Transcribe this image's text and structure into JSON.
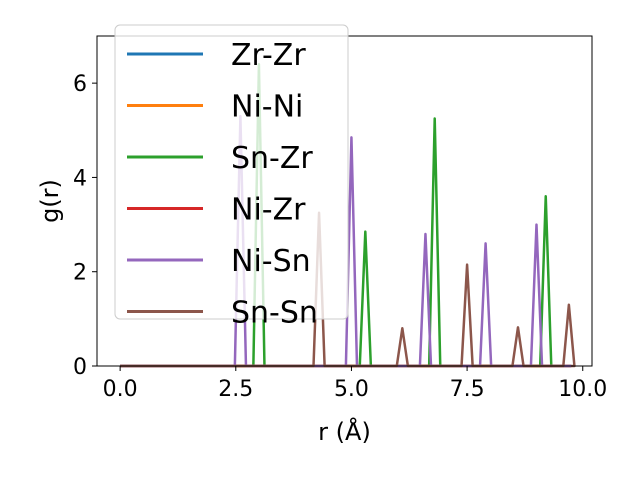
{
  "chart_data": {
    "type": "line",
    "xlabel": "r (Å)",
    "ylabel": "g(r)",
    "xlim": [
      -0.5,
      10.2
    ],
    "ylim": [
      0,
      7.0
    ],
    "xticks": [
      0.0,
      2.5,
      5.0,
      7.5,
      10.0
    ],
    "xtick_labels": [
      "0.0",
      "2.5",
      "5.0",
      "7.5",
      "10.0"
    ],
    "yticks": [
      0,
      2,
      4,
      6
    ],
    "ytick_labels": [
      "0",
      "2",
      "4",
      "6"
    ],
    "grid": false,
    "legend_position": "upper-left",
    "series": [
      {
        "name": "Zr-Zr",
        "color": "#1f77b4",
        "peaks": []
      },
      {
        "name": "Ni-Ni",
        "color": "#ff7f0e",
        "peaks": []
      },
      {
        "name": "Sn-Zr",
        "color": "#2ca02c",
        "peaks": [
          [
            3.0,
            6.4
          ],
          [
            5.3,
            2.85
          ],
          [
            6.8,
            5.25
          ],
          [
            9.2,
            3.6
          ]
        ]
      },
      {
        "name": "Ni-Zr",
        "color": "#d62728",
        "peaks": []
      },
      {
        "name": "Ni-Sn",
        "color": "#9467bd",
        "peaks": [
          [
            2.6,
            5.3
          ],
          [
            5.0,
            4.85
          ],
          [
            6.6,
            2.8
          ],
          [
            7.9,
            2.6
          ],
          [
            9.0,
            3.0
          ]
        ]
      },
      {
        "name": "Sn-Sn",
        "color": "#8c564b",
        "peaks": [
          [
            4.3,
            3.25
          ],
          [
            6.1,
            0.8
          ],
          [
            7.5,
            2.15
          ],
          [
            8.6,
            0.82
          ],
          [
            9.7,
            1.3
          ]
        ]
      }
    ]
  }
}
